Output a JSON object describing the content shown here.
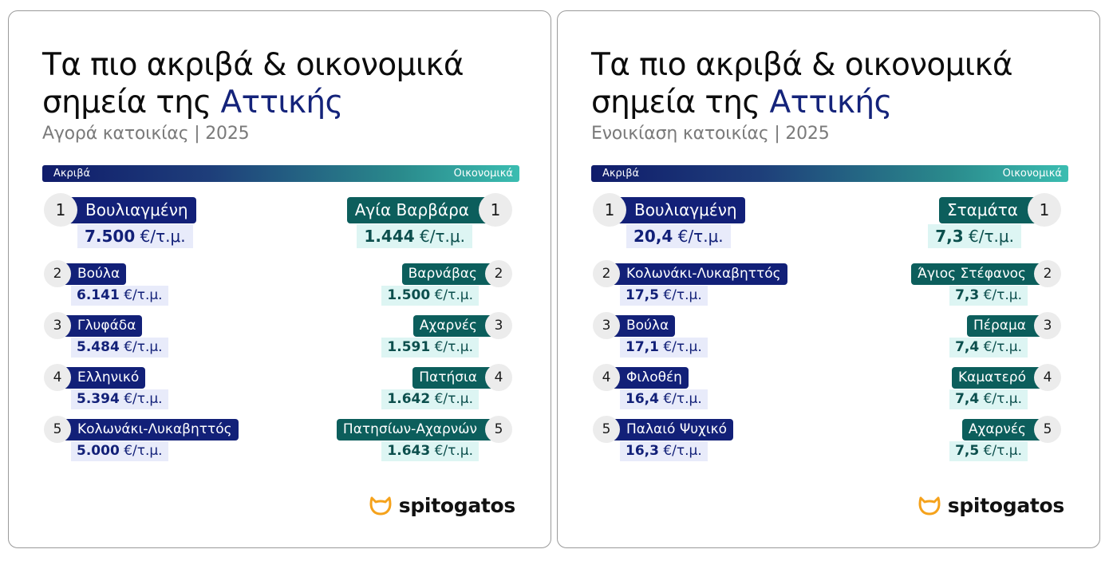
{
  "brand": "spitogatos",
  "gradient": {
    "left": "Ακριβά",
    "right": "Οικονομικά"
  },
  "buy": {
    "title_line1": "Τα πιο ακριβά & οικονομικά",
    "title_line2_prefix": "σημεία της ",
    "title_highlight": "Αττικής",
    "subtitle": "Αγορά κατοικίας | 2025",
    "expensive": [
      {
        "rank": "1",
        "name": "Βουλιαγμένη",
        "value": "7.500",
        "unit": "€/τ.μ."
      },
      {
        "rank": "2",
        "name": "Βούλα",
        "value": "6.141",
        "unit": "€/τ.μ."
      },
      {
        "rank": "3",
        "name": "Γλυφάδα",
        "value": "5.484",
        "unit": "€/τ.μ."
      },
      {
        "rank": "4",
        "name": "Ελληνικό",
        "value": "5.394",
        "unit": "€/τ.μ."
      },
      {
        "rank": "5",
        "name": "Κολωνάκι-Λυκαβηττός",
        "value": "5.000",
        "unit": "€/τ.μ."
      }
    ],
    "affordable": [
      {
        "rank": "1",
        "name": "Αγία Βαρβάρα",
        "value": "1.444",
        "unit": "€/τ.μ."
      },
      {
        "rank": "2",
        "name": "Βαρνάβας",
        "value": "1.500",
        "unit": "€/τ.μ."
      },
      {
        "rank": "3",
        "name": "Αχαρνές",
        "value": "1.591",
        "unit": "€/τ.μ."
      },
      {
        "rank": "4",
        "name": "Πατήσια",
        "value": "1.642",
        "unit": "€/τ.μ."
      },
      {
        "rank": "5",
        "name": "Πατησίων-Αχαρνών",
        "value": "1.643",
        "unit": "€/τ.μ."
      }
    ]
  },
  "rent": {
    "title_line1": "Τα πιο ακριβά & οικονομικά",
    "title_line2_prefix": "σημεία της ",
    "title_highlight": "Αττικής",
    "subtitle": "Ενοικίαση κατοικίας | 2025",
    "expensive": [
      {
        "rank": "1",
        "name": "Βουλιαγμένη",
        "value": "20,4",
        "unit": "€/τ.μ."
      },
      {
        "rank": "2",
        "name": "Κολωνάκι-Λυκαβηττός",
        "value": "17,5",
        "unit": "€/τ.μ."
      },
      {
        "rank": "3",
        "name": "Βούλα",
        "value": "17,1",
        "unit": "€/τ.μ."
      },
      {
        "rank": "4",
        "name": "Φιλοθέη",
        "value": "16,4",
        "unit": "€/τ.μ."
      },
      {
        "rank": "5",
        "name": "Παλαιό Ψυχικό",
        "value": "16,3",
        "unit": "€/τ.μ."
      }
    ],
    "affordable": [
      {
        "rank": "1",
        "name": "Σταμάτα",
        "value": "7,3",
        "unit": "€/τ.μ."
      },
      {
        "rank": "2",
        "name": "Άγιος Στέφανος",
        "value": "7,3",
        "unit": "€/τ.μ."
      },
      {
        "rank": "3",
        "name": "Πέραμα",
        "value": "7,4",
        "unit": "€/τ.μ."
      },
      {
        "rank": "4",
        "name": "Καματερό",
        "value": "7,4",
        "unit": "€/τ.μ."
      },
      {
        "rank": "5",
        "name": "Αχαρνές",
        "value": "7,5",
        "unit": "€/τ.μ."
      }
    ]
  },
  "colors": {
    "navy": "#122078",
    "teal": "#0c5e5c",
    "highlight": "#14237a",
    "logo_orange": "#f5a21b"
  },
  "icons": {
    "logo": "cat-head-icon"
  }
}
